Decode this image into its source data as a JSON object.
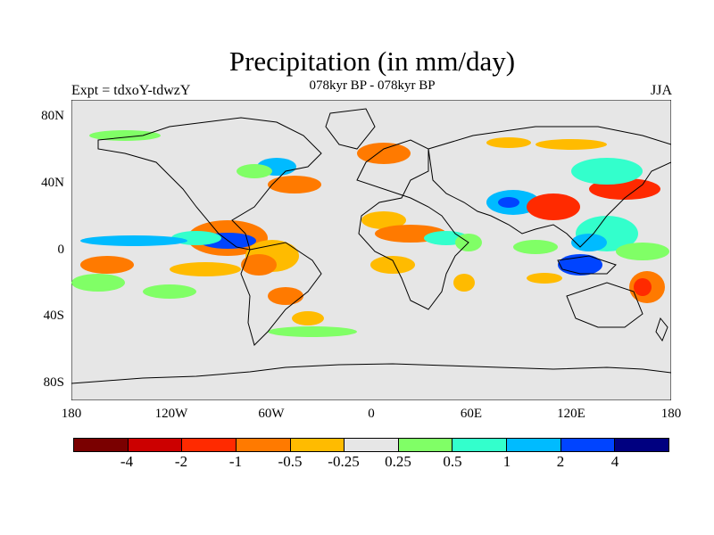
{
  "title": "Precipitation (in mm/day)",
  "subtitle": "078kyr BP - 078kyr BP",
  "experiment_label": "Expt = tdxoY-tdwzY",
  "season_label": "JJA",
  "y_ticks": [
    "80N",
    "40N",
    "0",
    "40S",
    "80S"
  ],
  "x_ticks": [
    "180",
    "120W",
    "60W",
    "0",
    "60E",
    "120E",
    "180"
  ],
  "colorbar": {
    "colors": [
      "#7a0000",
      "#cc0000",
      "#ff2a00",
      "#ff7a00",
      "#ffbb00",
      "#e6e6e6",
      "#80ff66",
      "#33ffcc",
      "#00bbff",
      "#0044ff",
      "#000080"
    ],
    "labels": [
      "-4",
      "-2",
      "-1",
      "-0.5",
      "-0.25",
      "0.25",
      "0.5",
      "1",
      "2",
      "4"
    ]
  },
  "map": {
    "background": "#e6e6e6",
    "coastline_color": "#000000"
  }
}
